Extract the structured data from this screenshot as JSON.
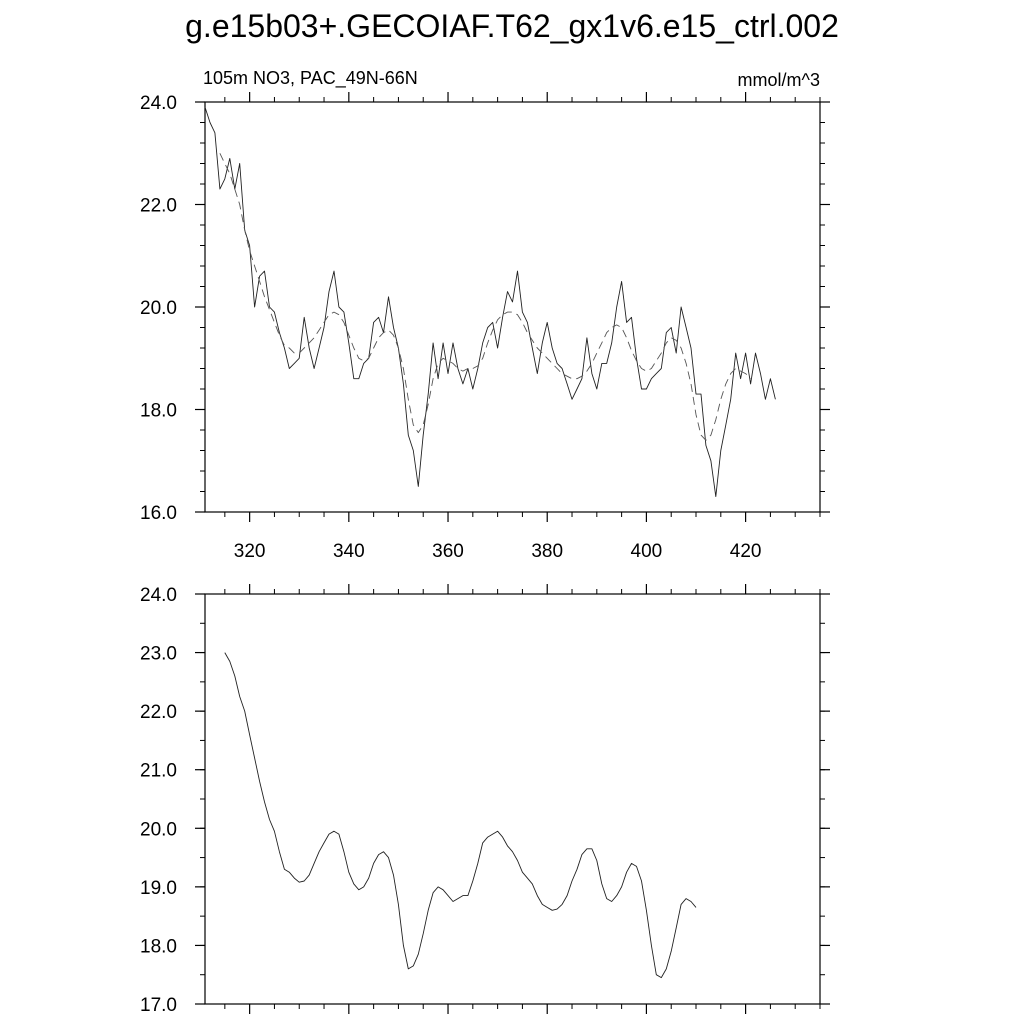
{
  "title": "g.e15b03+.GECOIAF.T62_gx1v6.e15_ctrl.002",
  "chart_data": [
    {
      "type": "line",
      "left_label": "105m NO3, PAC_49N-66N",
      "right_label": "mmol/m^3",
      "xlim": [
        311,
        435
      ],
      "ylim": [
        16.0,
        24.0
      ],
      "yticks": [
        "24.0",
        "22.0",
        "20.0",
        "18.0",
        "16.0"
      ],
      "ytick_values": [
        24,
        22,
        20,
        18,
        16
      ],
      "xticks": [
        "320",
        "340",
        "360",
        "380",
        "400",
        "420"
      ],
      "xtick_values": [
        320,
        340,
        360,
        380,
        400,
        420
      ],
      "x_start": 311,
      "series": [
        {
          "style": "solid",
          "values": [
            23.9,
            23.6,
            23.4,
            22.3,
            22.5,
            22.9,
            22.3,
            22.8,
            21.5,
            21.2,
            20.0,
            20.6,
            20.7,
            20.0,
            19.9,
            19.5,
            19.2,
            18.8,
            18.9,
            19.0,
            19.8,
            19.2,
            18.8,
            19.2,
            19.6,
            20.3,
            20.7,
            20.0,
            19.9,
            19.3,
            18.6,
            18.6,
            18.9,
            19.0,
            19.7,
            19.8,
            19.5,
            20.2,
            19.6,
            19.2,
            18.5,
            17.5,
            17.2,
            16.5,
            17.5,
            18.3,
            19.3,
            18.6,
            19.3,
            18.7,
            19.3,
            18.8,
            18.5,
            18.8,
            18.4,
            18.8,
            19.3,
            19.6,
            19.7,
            19.2,
            19.8,
            20.3,
            20.1,
            20.7,
            19.9,
            19.7,
            19.2,
            18.7,
            19.3,
            19.7,
            19.2,
            18.9,
            18.8,
            18.5,
            18.2,
            18.4,
            18.6,
            19.4,
            18.7,
            18.4,
            18.9,
            18.9,
            19.3,
            20.0,
            20.5,
            19.7,
            19.8,
            19.0,
            18.4,
            18.4,
            18.6,
            18.7,
            18.8,
            19.5,
            19.6,
            19.1,
            20.0,
            19.6,
            19.2,
            18.3,
            18.3,
            17.3,
            17.0,
            16.3,
            17.2,
            17.7,
            18.2,
            19.1,
            18.6,
            19.1,
            18.5,
            19.1,
            18.7,
            18.2,
            18.6,
            18.2
          ]
        },
        {
          "style": "dashed",
          "values": [
            null,
            null,
            null,
            23.0,
            22.8,
            22.6,
            22.3,
            22.0,
            21.5,
            21.1,
            20.8,
            20.5,
            20.2,
            19.95,
            19.7,
            19.45,
            19.25,
            19.2,
            19.1,
            19.1,
            19.2,
            19.3,
            19.4,
            19.55,
            19.7,
            19.85,
            19.9,
            19.85,
            19.7,
            19.45,
            19.2,
            19.0,
            18.95,
            19.0,
            19.2,
            19.4,
            19.5,
            19.55,
            19.45,
            19.2,
            18.8,
            18.2,
            17.7,
            17.55,
            17.7,
            18.1,
            18.6,
            18.9,
            19.0,
            18.95,
            18.9,
            18.8,
            18.75,
            18.8,
            18.8,
            18.85,
            19.0,
            19.3,
            19.55,
            19.75,
            19.85,
            19.9,
            19.9,
            19.85,
            19.7,
            19.5,
            19.35,
            19.2,
            19.1,
            19.0,
            18.9,
            18.8,
            18.7,
            18.65,
            18.6,
            18.6,
            18.65,
            18.75,
            18.9,
            19.1,
            19.3,
            19.5,
            19.6,
            19.65,
            19.6,
            19.4,
            19.15,
            18.95,
            18.8,
            18.75,
            18.8,
            18.95,
            19.1,
            19.3,
            19.4,
            19.35,
            19.2,
            18.9,
            18.5,
            17.9,
            17.5,
            17.4,
            17.5,
            17.8,
            18.2,
            18.5,
            18.7,
            18.8,
            18.75,
            18.7,
            18.6,
            null,
            null,
            null,
            null,
            null
          ]
        }
      ]
    },
    {
      "type": "line",
      "xlim": [
        311,
        435
      ],
      "ylim": [
        17.0,
        24.0
      ],
      "yticks": [
        "24.0",
        "23.0",
        "22.0",
        "21.0",
        "20.0",
        "19.0",
        "18.0",
        "17.0"
      ],
      "ytick_values": [
        24,
        23,
        22,
        21,
        20,
        19,
        18,
        17
      ],
      "xtick_values": [
        320,
        340,
        360,
        380,
        400,
        420
      ],
      "x_start": 311,
      "series": [
        {
          "style": "solid",
          "values": [
            null,
            null,
            null,
            null,
            23.0,
            22.85,
            22.6,
            22.25,
            22.0,
            21.6,
            21.2,
            20.8,
            20.45,
            20.15,
            19.95,
            19.6,
            19.3,
            19.25,
            19.15,
            19.08,
            19.1,
            19.2,
            19.4,
            19.6,
            19.75,
            19.9,
            19.95,
            19.9,
            19.6,
            19.25,
            19.05,
            18.95,
            19.0,
            19.15,
            19.4,
            19.55,
            19.6,
            19.5,
            19.2,
            18.7,
            18.0,
            17.6,
            17.65,
            17.85,
            18.2,
            18.6,
            18.9,
            19.0,
            18.95,
            18.85,
            18.75,
            18.8,
            18.85,
            18.85,
            19.1,
            19.4,
            19.75,
            19.85,
            19.9,
            19.95,
            19.85,
            19.7,
            19.6,
            19.45,
            19.25,
            19.15,
            19.05,
            18.85,
            18.7,
            18.65,
            18.6,
            18.62,
            18.7,
            18.85,
            19.1,
            19.3,
            19.55,
            19.65,
            19.65,
            19.45,
            19.05,
            18.8,
            18.75,
            18.85,
            19.0,
            19.25,
            19.4,
            19.35,
            19.1,
            18.6,
            18.0,
            17.5,
            17.45,
            17.6,
            17.9,
            18.3,
            18.7,
            18.8,
            18.75,
            18.65
          ]
        }
      ]
    }
  ]
}
